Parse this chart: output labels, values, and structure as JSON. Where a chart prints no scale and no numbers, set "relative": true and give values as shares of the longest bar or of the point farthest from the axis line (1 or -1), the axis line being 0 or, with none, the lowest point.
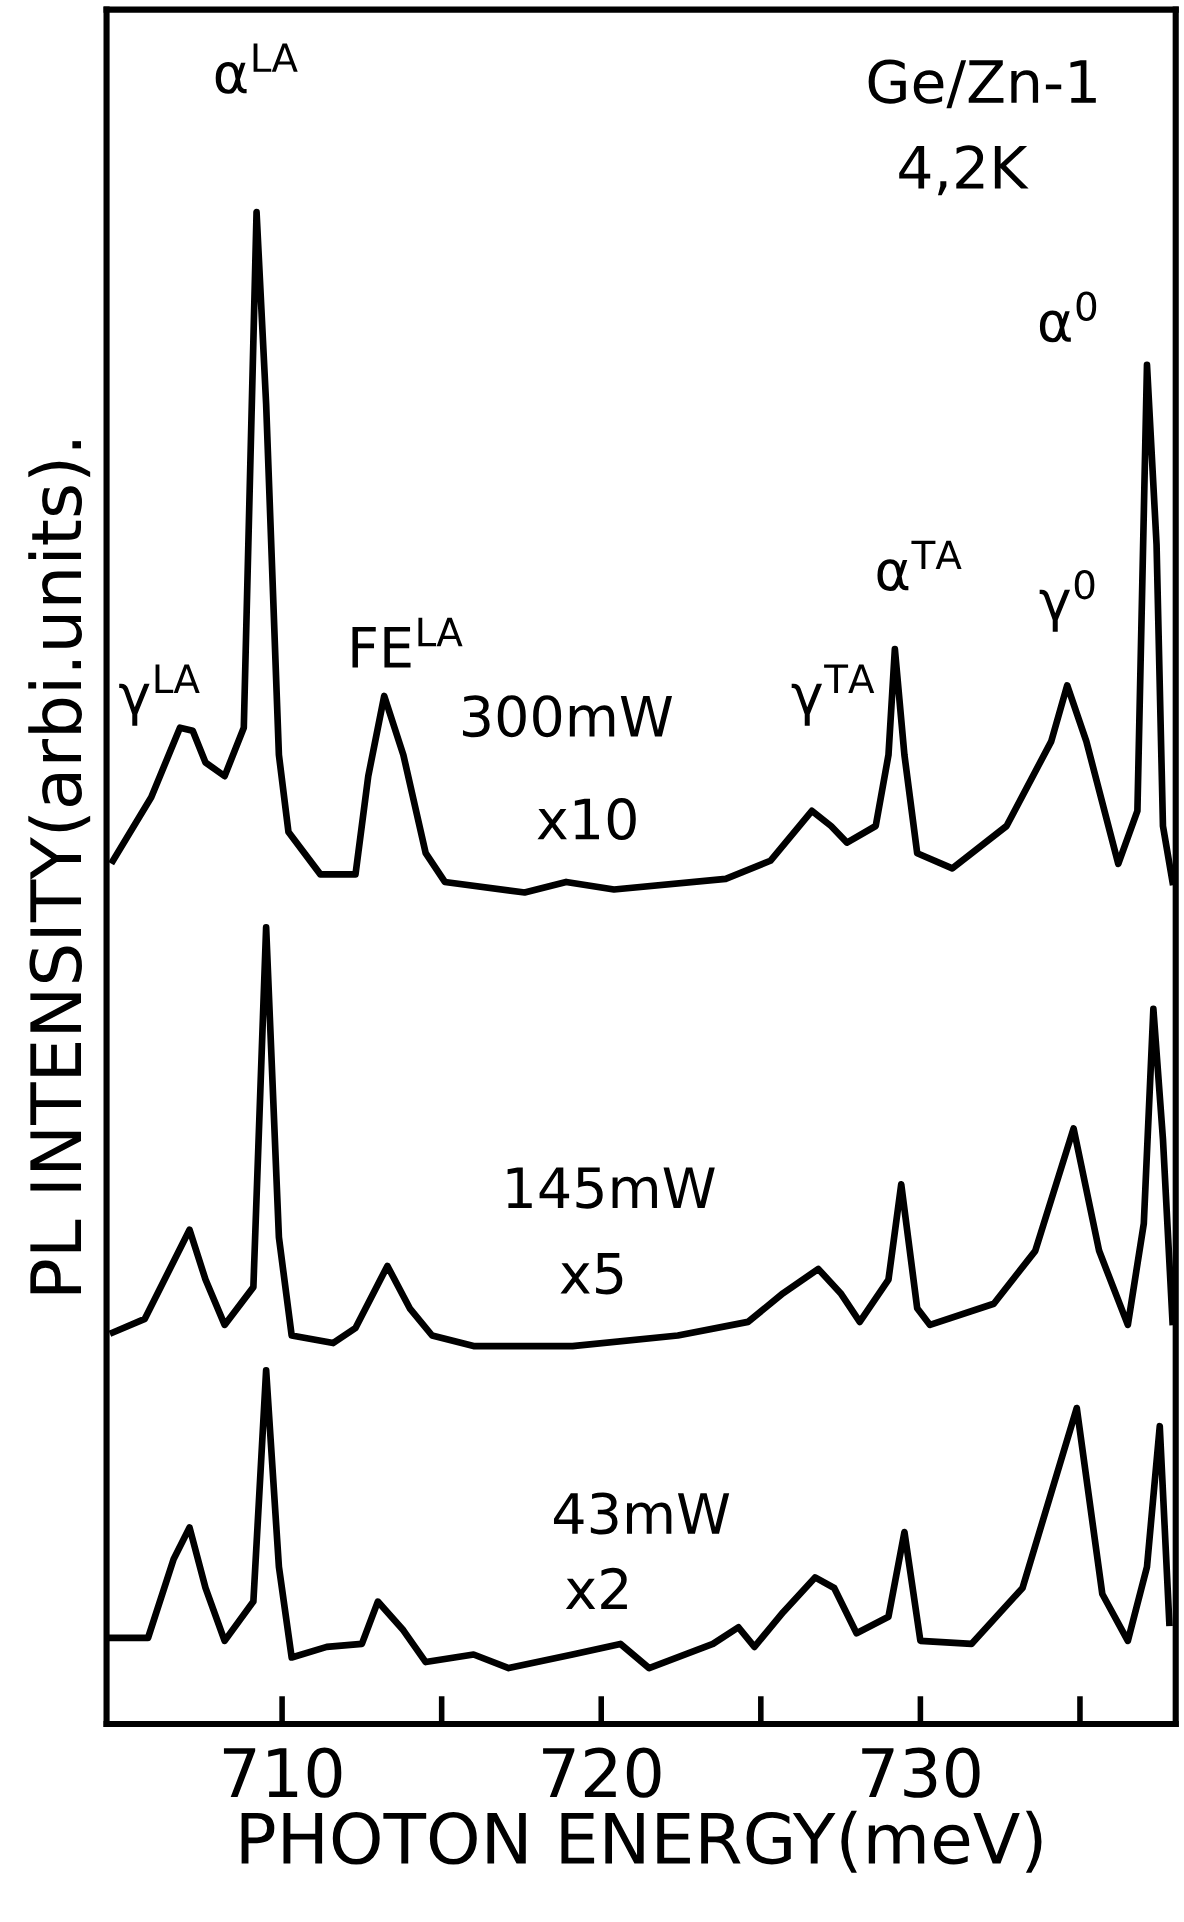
{
  "chart_data": {
    "type": "line",
    "relative": true,
    "title": "Ge/Zn-1",
    "subtitle": "4,2K",
    "xlabel": "PHOTON ENERGY(meV)",
    "ylabel": "PL INTENSITY(arbi.units).",
    "xlim": [
      704.5,
      738
    ],
    "xticks": [
      710,
      {
        "value": 715,
        "label": null
      },
      720,
      {
        "value": 725,
        "label": null
      },
      730,
      {
        "value": 735,
        "label": null
      }
    ],
    "grid": false,
    "marker": "none",
    "line_style": "solid",
    "series": [
      {
        "color": "#000000",
        "x": [
          704.7,
          705.9,
          706.8,
          707.2,
          707.6,
          708.2,
          708.8,
          709.2,
          709.5,
          709.9,
          710.2,
          711.2,
          712.3,
          712.7,
          713.2,
          713.8,
          714.5,
          715.1,
          717.6,
          718.9,
          720.4,
          723.9,
          725.3,
          726.6,
          727.2,
          727.7,
          728.6,
          729.0,
          729.2,
          729.5,
          729.9,
          731.0,
          732.7,
          734.1,
          734.6,
          735.2,
          736.2,
          736.8,
          737.1,
          737.4,
          737.6,
          737.9
        ],
        "values": [
          0.571,
          0.613,
          0.659,
          0.657,
          0.636,
          0.627,
          0.659,
          1.0,
          0.873,
          0.641,
          0.59,
          0.562,
          0.562,
          0.627,
          0.68,
          0.641,
          0.576,
          0.557,
          0.55,
          0.557,
          0.552,
          0.559,
          0.571,
          0.604,
          0.594,
          0.583,
          0.594,
          0.641,
          0.711,
          0.641,
          0.576,
          0.566,
          0.594,
          0.65,
          0.687,
          0.65,
          0.569,
          0.604,
          0.899,
          0.78,
          0.594,
          0.557
        ]
      },
      {
        "color": "#000000",
        "x": [
          704.7,
          705.7,
          707.1,
          707.6,
          708.2,
          709.1,
          709.5,
          709.9,
          710.3,
          711.6,
          712.3,
          713.3,
          714.0,
          714.7,
          716.0,
          719.1,
          722.4,
          724.6,
          725.7,
          726.8,
          727.5,
          728.1,
          729.0,
          729.4,
          729.9,
          730.3,
          732.3,
          733.6,
          734.8,
          735.6,
          736.5,
          737.0,
          737.3,
          737.6,
          737.9
        ],
        "values": [
          0.259,
          0.268,
          0.327,
          0.294,
          0.264,
          0.289,
          0.527,
          0.322,
          0.257,
          0.252,
          0.262,
          0.303,
          0.275,
          0.257,
          0.25,
          0.25,
          0.257,
          0.266,
          0.285,
          0.301,
          0.285,
          0.266,
          0.294,
          0.357,
          0.275,
          0.264,
          0.278,
          0.313,
          0.394,
          0.313,
          0.264,
          0.331,
          0.473,
          0.387,
          0.266
        ]
      },
      {
        "color": "#000000",
        "x": [
          704.6,
          705.8,
          706.6,
          707.1,
          707.6,
          708.2,
          709.1,
          709.5,
          709.9,
          710.3,
          711.4,
          712.5,
          713.0,
          713.8,
          714.5,
          716.0,
          717.1,
          719.1,
          720.6,
          721.5,
          723.5,
          724.3,
          724.8,
          725.7,
          726.7,
          727.3,
          728.0,
          729.0,
          729.5,
          730.0,
          731.6,
          733.2,
          734.9,
          735.7,
          736.5,
          737.1,
          737.5,
          737.8
        ],
        "values": [
          0.057,
          0.057,
          0.109,
          0.13,
          0.09,
          0.055,
          0.081,
          0.234,
          0.104,
          0.044,
          0.051,
          0.053,
          0.081,
          0.062,
          0.041,
          0.046,
          0.037,
          0.046,
          0.053,
          0.037,
          0.053,
          0.064,
          0.051,
          0.074,
          0.097,
          0.09,
          0.06,
          0.071,
          0.127,
          0.055,
          0.053,
          0.09,
          0.209,
          0.086,
          0.055,
          0.104,
          0.197,
          0.067
        ]
      }
    ],
    "annotations": [
      "γ$^{LA}$",
      "α$^{LA}$",
      "FE$^{LA}$",
      "γ$^{TA}$",
      "α$^{TA}$",
      "γ$^{0}$",
      "α$^{0}$",
      "300mW",
      "x10",
      "145mW",
      "x5",
      "43mW",
      "x2"
    ]
  }
}
